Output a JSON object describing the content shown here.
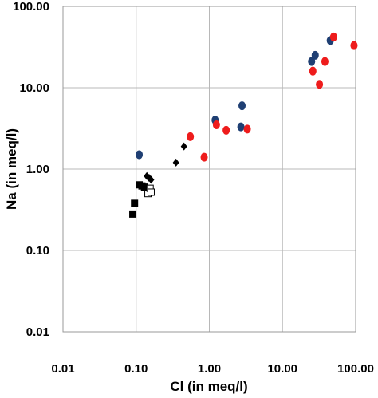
{
  "chart_data": {
    "type": "scatter",
    "xscale": "log",
    "yscale": "log",
    "xlim": [
      0.01,
      100
    ],
    "ylim": [
      0.01,
      100
    ],
    "xlabel": "Cl (in meq/l)",
    "ylabel": "Na (in meq/l)",
    "x_ticks": [
      0.01,
      0.1,
      1,
      10,
      100
    ],
    "x_tick_labels": [
      "0.01",
      "0.10",
      "1.00",
      "10.00",
      "100.00"
    ],
    "y_ticks": [
      0.01,
      0.1,
      1,
      10,
      100
    ],
    "y_tick_labels": [
      "0.01",
      "0.10",
      "1.00",
      "10.00",
      "100.00"
    ],
    "grid": true,
    "series": [
      {
        "marker": "circle",
        "color": "#1f3f73",
        "points": [
          {
            "x": 0.11,
            "y": 1.5
          },
          {
            "x": 1.2,
            "y": 4.0
          },
          {
            "x": 2.7,
            "y": 3.3
          },
          {
            "x": 2.8,
            "y": 6.0
          },
          {
            "x": 25,
            "y": 21
          },
          {
            "x": 28,
            "y": 25
          },
          {
            "x": 45,
            "y": 38
          }
        ]
      },
      {
        "marker": "circle",
        "color": "#ee1c1c",
        "points": [
          {
            "x": 0.55,
            "y": 2.5
          },
          {
            "x": 0.85,
            "y": 1.4
          },
          {
            "x": 1.25,
            "y": 3.5
          },
          {
            "x": 1.7,
            "y": 3.0
          },
          {
            "x": 3.3,
            "y": 3.1
          },
          {
            "x": 26,
            "y": 16
          },
          {
            "x": 32,
            "y": 11
          },
          {
            "x": 38,
            "y": 21
          },
          {
            "x": 50,
            "y": 42
          },
          {
            "x": 95,
            "y": 33
          }
        ]
      },
      {
        "marker": "diamond",
        "color": "#000000",
        "points": [
          {
            "x": 0.14,
            "y": 0.82
          },
          {
            "x": 0.15,
            "y": 0.78
          },
          {
            "x": 0.16,
            "y": 0.74
          },
          {
            "x": 0.35,
            "y": 1.2
          },
          {
            "x": 0.45,
            "y": 1.9
          }
        ]
      },
      {
        "marker": "square",
        "color": "#000000",
        "points": [
          {
            "x": 0.09,
            "y": 0.28
          },
          {
            "x": 0.095,
            "y": 0.38
          },
          {
            "x": 0.11,
            "y": 0.64
          },
          {
            "x": 0.12,
            "y": 0.62
          },
          {
            "x": 0.13,
            "y": 0.6
          }
        ]
      },
      {
        "marker": "square-open",
        "color": "#000000",
        "points": [
          {
            "x": 0.145,
            "y": 0.5
          },
          {
            "x": 0.155,
            "y": 0.58
          },
          {
            "x": 0.16,
            "y": 0.52
          }
        ]
      }
    ]
  }
}
